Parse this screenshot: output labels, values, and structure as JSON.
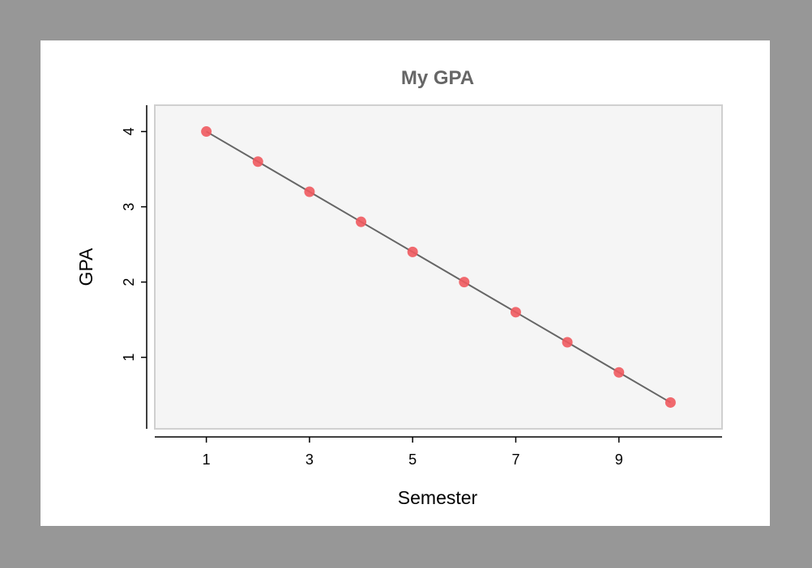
{
  "chart_data": {
    "type": "line",
    "title": "My GPA",
    "xlabel": "Semester",
    "ylabel": "GPA",
    "x": [
      1,
      2,
      3,
      4,
      5,
      6,
      7,
      8,
      9,
      10
    ],
    "series": [
      {
        "values": [
          4.0,
          3.6,
          3.2,
          2.8,
          2.4,
          2.0,
          1.6,
          1.2,
          0.8,
          0.4
        ]
      }
    ],
    "xlim": [
      0,
      11
    ],
    "ylim": [
      0.05,
      4.35
    ],
    "xticks": [
      1,
      3,
      5,
      7,
      9
    ],
    "yticks": [
      1,
      2,
      3,
      4
    ],
    "grid": false,
    "legend": "none",
    "colors": {
      "page_background": "#979797",
      "card_background": "#ffffff",
      "plot_background": "#f5f5f5",
      "plot_border": "#d0d0d0",
      "line": "#666666",
      "marker": "#f05a5f",
      "title": "#666666"
    }
  }
}
